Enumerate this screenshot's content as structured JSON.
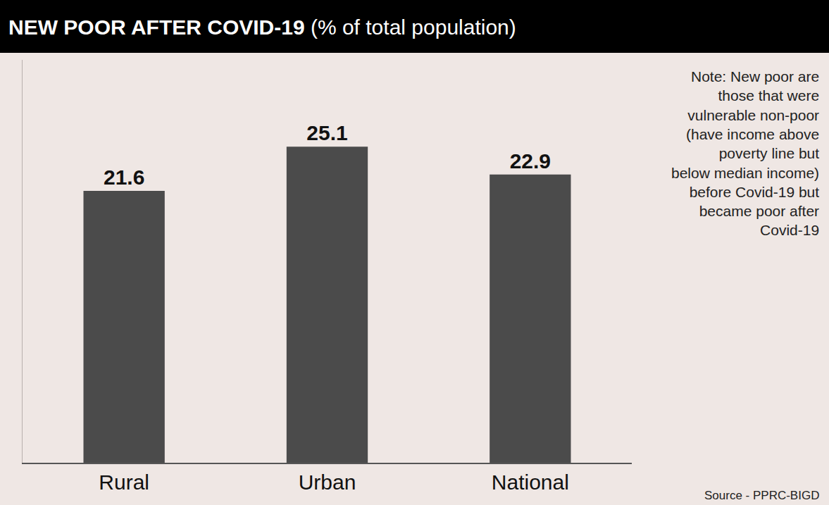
{
  "chart_data": {
    "type": "bar",
    "title": "NEW POOR AFTER COVID-19",
    "subtitle": "(% of total population)",
    "note": "Note: New poor are those that were vulnerable non-poor (have income above poverty line but below median income) before Covid-19 but became poor after Covid-19",
    "source": "Source - PPRC-BIGD",
    "categories": [
      "Rural",
      "Urban",
      "National"
    ],
    "values": [
      21.6,
      25.1,
      22.9
    ],
    "color": "#4b4b4b",
    "ylim": [
      0,
      32
    ],
    "data_labels": true,
    "tick_labels": "x",
    "grid": false
  }
}
